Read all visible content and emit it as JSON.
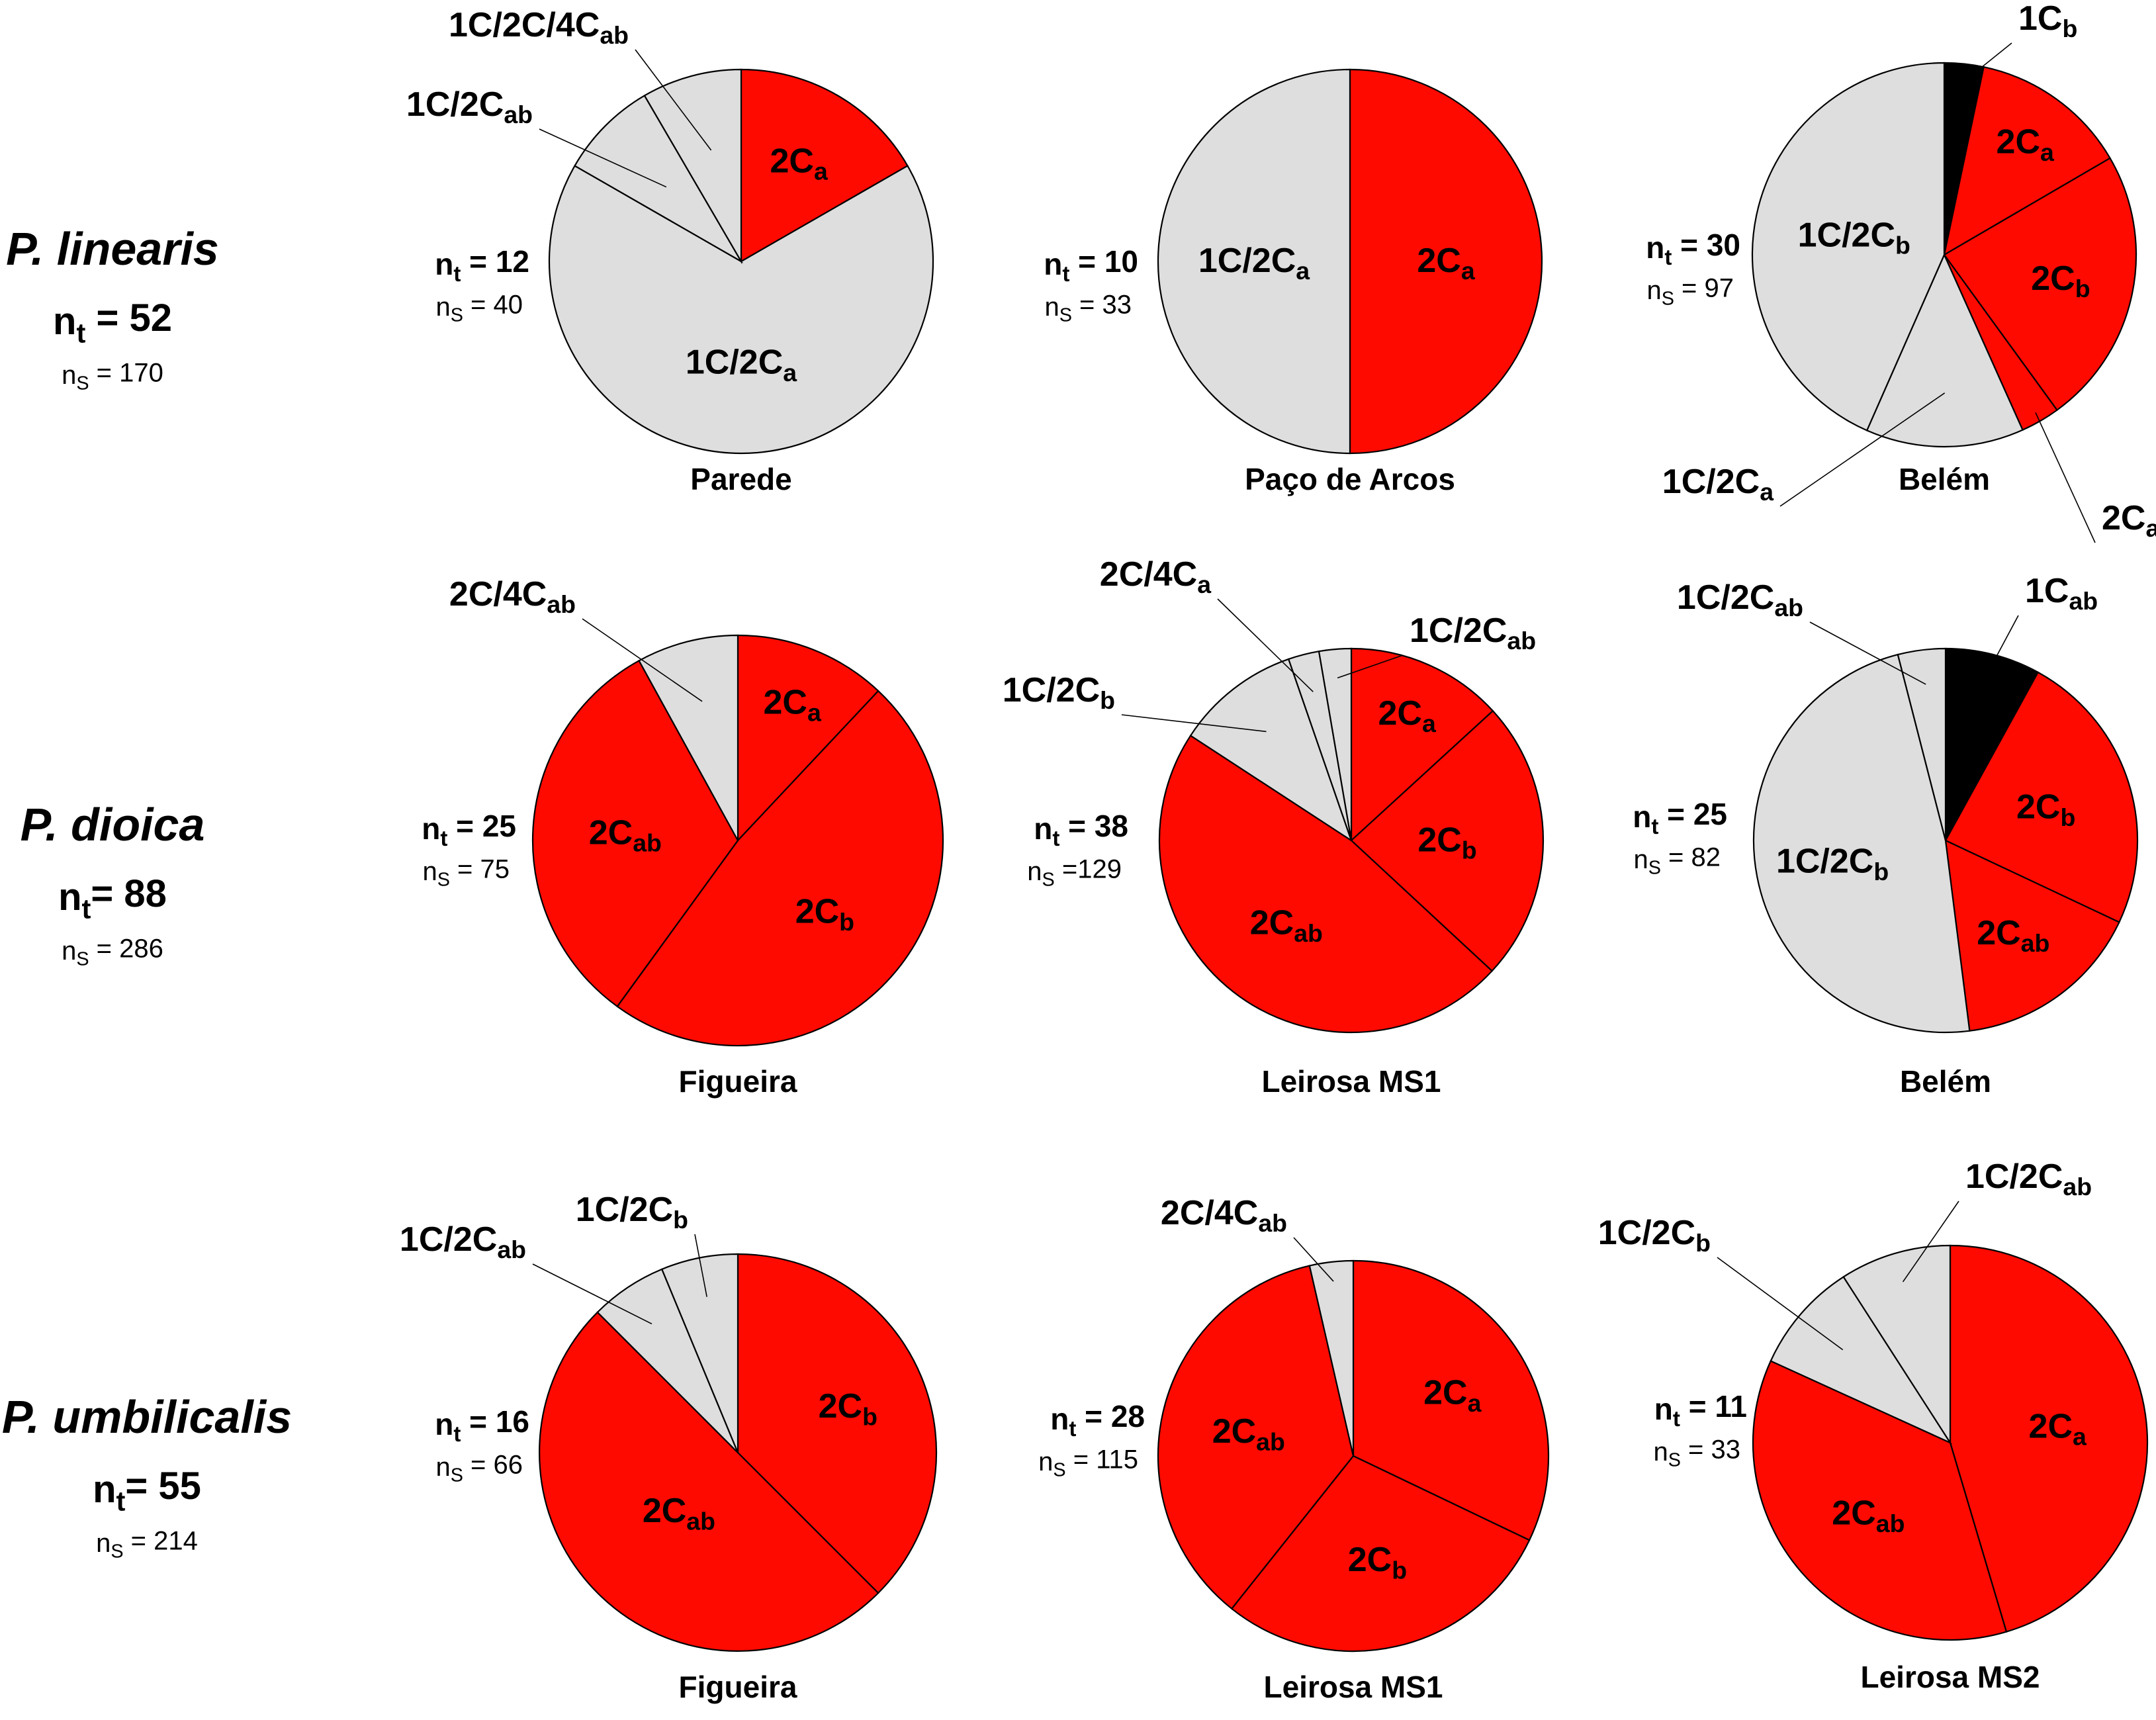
{
  "colors": {
    "red": "#ff0a00",
    "grey": "#dedede",
    "black": "#000000"
  },
  "chart_data": [
    {
      "type": "pie",
      "species": "P. linearis",
      "site": "Parede",
      "nt": "12",
      "ns": "40",
      "slices": [
        {
          "base": "2C",
          "sub": "a",
          "value": 16.7,
          "color": "red"
        },
        {
          "base": "1C/2C",
          "sub": "a",
          "value": 66.6,
          "color": "grey"
        },
        {
          "base": "1C/2C",
          "sub": "ab",
          "value": 8.3,
          "color": "grey"
        },
        {
          "base": "1C/2C/4C",
          "sub": "ab",
          "value": 8.4,
          "color": "grey"
        }
      ]
    },
    {
      "type": "pie",
      "species": "P. linearis",
      "site": "Paço de Arcos",
      "nt": "10",
      "ns": "33",
      "slices": [
        {
          "base": "2C",
          "sub": "a",
          "value": 50,
          "color": "red"
        },
        {
          "base": "1C/2C",
          "sub": "a",
          "value": 50,
          "color": "grey"
        }
      ]
    },
    {
      "type": "pie",
      "species": "P. linearis",
      "site": "Belém",
      "nt": "30",
      "ns": "97",
      "slices": [
        {
          "base": "1C",
          "sub": "b",
          "value": 3.3,
          "color": "black"
        },
        {
          "base": "2C",
          "sub": "a",
          "value": 13.3,
          "color": "red"
        },
        {
          "base": "2C",
          "sub": "b",
          "value": 23.4,
          "color": "red"
        },
        {
          "base": "2C",
          "sub": "ab",
          "value": 3.3,
          "color": "red"
        },
        {
          "base": "1C/2C",
          "sub": "a",
          "value": 13.3,
          "color": "grey"
        },
        {
          "base": "1C/2C",
          "sub": "b",
          "value": 43.4,
          "color": "grey"
        }
      ]
    },
    {
      "type": "pie",
      "species": "P. dioica",
      "site": "Figueira",
      "nt": "25",
      "ns": "75",
      "slices": [
        {
          "base": "2C",
          "sub": "a",
          "value": 12,
          "color": "red"
        },
        {
          "base": "2C",
          "sub": "b",
          "value": 48,
          "color": "red"
        },
        {
          "base": "2C",
          "sub": "ab",
          "value": 32,
          "color": "red"
        },
        {
          "base": "2C/4C",
          "sub": "ab",
          "value": 8,
          "color": "grey"
        }
      ]
    },
    {
      "type": "pie",
      "species": "P. dioica",
      "site": "Leirosa MS1",
      "nt": "38",
      "ns": "=129",
      "slices": [
        {
          "base": "2C",
          "sub": "a",
          "value": 13.2,
          "color": "red"
        },
        {
          "base": "2C",
          "sub": "b",
          "value": 23.7,
          "color": "red"
        },
        {
          "base": "2C",
          "sub": "ab",
          "value": 47.3,
          "color": "red"
        },
        {
          "base": "1C/2C",
          "sub": "b",
          "value": 10.5,
          "color": "grey"
        },
        {
          "base": "2C/4C",
          "sub": "a",
          "value": 2.6,
          "color": "grey"
        },
        {
          "base": "1C/2C",
          "sub": "ab",
          "value": 2.7,
          "color": "grey"
        }
      ]
    },
    {
      "type": "pie",
      "species": "P. dioica",
      "site": "Belém",
      "nt": "25",
      "ns": "82",
      "slices": [
        {
          "base": "1C",
          "sub": "ab",
          "value": 8,
          "color": "black"
        },
        {
          "base": "2C",
          "sub": "b",
          "value": 24,
          "color": "red"
        },
        {
          "base": "2C",
          "sub": "ab",
          "value": 16,
          "color": "red"
        },
        {
          "base": "1C/2C",
          "sub": "b",
          "value": 48,
          "color": "grey"
        },
        {
          "base": "1C/2C",
          "sub": "ab",
          "value": 4,
          "color": "grey"
        }
      ]
    },
    {
      "type": "pie",
      "species": "P. umbilicalis",
      "site": "Figueira",
      "nt": "16",
      "ns": "66",
      "slices": [
        {
          "base": "2C",
          "sub": "b",
          "value": 37.5,
          "color": "red"
        },
        {
          "base": "2C",
          "sub": "ab",
          "value": 50,
          "color": "red"
        },
        {
          "base": "1C/2C",
          "sub": "ab",
          "value": 6.25,
          "color": "grey"
        },
        {
          "base": "1C/2C",
          "sub": "b",
          "value": 6.25,
          "color": "grey"
        }
      ]
    },
    {
      "type": "pie",
      "species": "P. umbilicalis",
      "site": "Leirosa MS1",
      "nt": "28",
      "ns": "115",
      "slices": [
        {
          "base": "2C",
          "sub": "a",
          "value": 32.1,
          "color": "red"
        },
        {
          "base": "2C",
          "sub": "b",
          "value": 28.6,
          "color": "red"
        },
        {
          "base": "2C",
          "sub": "ab",
          "value": 35.7,
          "color": "red"
        },
        {
          "base": "2C/4C",
          "sub": "ab",
          "value": 3.6,
          "color": "grey"
        }
      ]
    },
    {
      "type": "pie",
      "species": "P. umbilicalis",
      "site": "Leirosa MS2",
      "nt": "11",
      "ns": "33",
      "slices": [
        {
          "base": "2C",
          "sub": "a",
          "value": 45.4,
          "color": "red"
        },
        {
          "base": "2C",
          "sub": "ab",
          "value": 36.4,
          "color": "red"
        },
        {
          "base": "1C/2C",
          "sub": "b",
          "value": 9.1,
          "color": "grey"
        },
        {
          "base": "1C/2C",
          "sub": "ab",
          "value": 9.1,
          "color": "grey"
        }
      ]
    }
  ],
  "species": [
    {
      "name": "P. linearis",
      "nt": "52",
      "ns": "170",
      "eq": " = "
    },
    {
      "name": "P. dioica",
      "nt": "88",
      "ns": "286",
      "eq": "= "
    },
    {
      "name": "P. umbilicalis",
      "nt": "55",
      "ns": "214",
      "eq": "= "
    }
  ],
  "labels": {
    "nt_sym": "n",
    "nt_sub": "t",
    "ns_sym": "n",
    "ns_sub": "S"
  }
}
